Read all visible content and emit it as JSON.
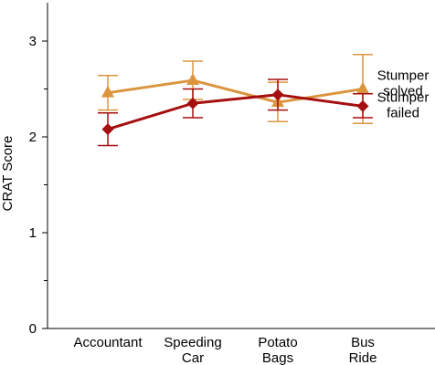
{
  "chart_data": {
    "type": "line",
    "title": "",
    "xlabel": "",
    "ylabel": "CRAT Score",
    "ylim": [
      0,
      3.4
    ],
    "y_major_ticks": [
      0,
      1,
      2,
      3
    ],
    "y_minor_ticks": [
      0.5,
      1.5,
      2.5
    ],
    "categories": [
      [
        "Accountant"
      ],
      [
        "Speeding",
        "Car"
      ],
      [
        "Potato",
        "Bags"
      ],
      [
        "Bus",
        "Ride"
      ]
    ],
    "grid": false,
    "legend_placement": "right, next to line ends",
    "series": [
      {
        "name": [
          "Stumper",
          "solved"
        ],
        "color": "#DB953F",
        "marker": "triangle",
        "values": [
          2.46,
          2.59,
          2.36,
          2.5
        ],
        "err_low": [
          2.28,
          2.39,
          2.16,
          2.14
        ],
        "err_high": [
          2.64,
          2.79,
          2.57,
          2.86
        ]
      },
      {
        "name": [
          "Stumper",
          "failed"
        ],
        "color": "#A50F0F",
        "marker": "diamond",
        "values": [
          2.08,
          2.35,
          2.44,
          2.32
        ],
        "err_low": [
          1.91,
          2.2,
          2.28,
          2.2
        ],
        "err_high": [
          2.25,
          2.5,
          2.6,
          2.45
        ]
      }
    ]
  }
}
